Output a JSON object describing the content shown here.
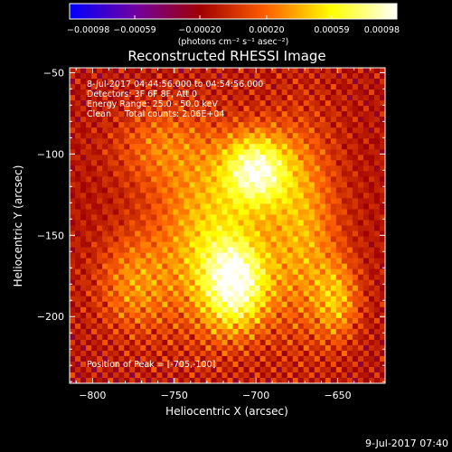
{
  "chart_data": {
    "type": "heatmap",
    "title": "Reconstructed RHESSI Image",
    "xlabel": "Heliocentric X (arcsec)",
    "ylabel": "Heliocentric Y (arcsec)",
    "xlim": [
      -814,
      -621
    ],
    "ylim": [
      -241,
      -47
    ],
    "x_ticks": [
      -800,
      -750,
      -700,
      -650
    ],
    "x_tick_labels": [
      "−800",
      "−750",
      "−700",
      "−650"
    ],
    "y_ticks": [
      -50,
      -100,
      -150,
      -200
    ],
    "y_tick_labels": [
      "−50",
      "−100",
      "−150",
      "−200"
    ],
    "info_lines": [
      "8-Jul-2017 04:44:56.000 to 04:54:56.000",
      "Detectors: 3F 6F 8F, Att 0",
      "Energy Range: 25.0 - 50.0 keV",
      "Clean     Total counts: 2.06E+04"
    ],
    "peak_label": "Position of Peak = [-705,-100]",
    "peak_position": [
      -705,
      -100
    ],
    "colorbar": {
      "min": -0.00098,
      "max": 0.00098,
      "ticks": [
        -0.00098,
        -0.00059,
        -0.0002,
        0.0002,
        0.00059,
        0.00098
      ],
      "tick_labels": [
        "−0.00098",
        "−0.00059",
        "−0.00020",
        "0.00020",
        "0.00059",
        "0.00098"
      ],
      "units": "(photons cm⁻² s⁻¹ asec⁻²)",
      "colormap": [
        "#0000ff",
        "#7000a0",
        "#a00000",
        "#ff6000",
        "#ffff00",
        "#ffffff"
      ]
    },
    "blobs": [
      {
        "x": -700,
        "y": -110,
        "amp": 0.0009,
        "sx": 14,
        "sy": 16
      },
      {
        "x": -712,
        "y": -180,
        "amp": 0.0009,
        "sx": 14,
        "sy": 20
      },
      {
        "x": -730,
        "y": -150,
        "amp": 0.00055,
        "sx": 22,
        "sy": 40
      },
      {
        "x": -672,
        "y": -145,
        "amp": 0.0005,
        "sx": 16,
        "sy": 45
      },
      {
        "x": -650,
        "y": -190,
        "amp": 0.00045,
        "sx": 10,
        "sy": 18
      },
      {
        "x": -775,
        "y": -180,
        "amp": 0.0004,
        "sx": 16,
        "sy": 22
      },
      {
        "x": -760,
        "y": -95,
        "amp": 0.0003,
        "sx": 20,
        "sy": 18
      }
    ],
    "background_level": -0.00012,
    "ripple_amplitude": 0.00022
  },
  "timestamp": "9-Jul-2017 07:40"
}
